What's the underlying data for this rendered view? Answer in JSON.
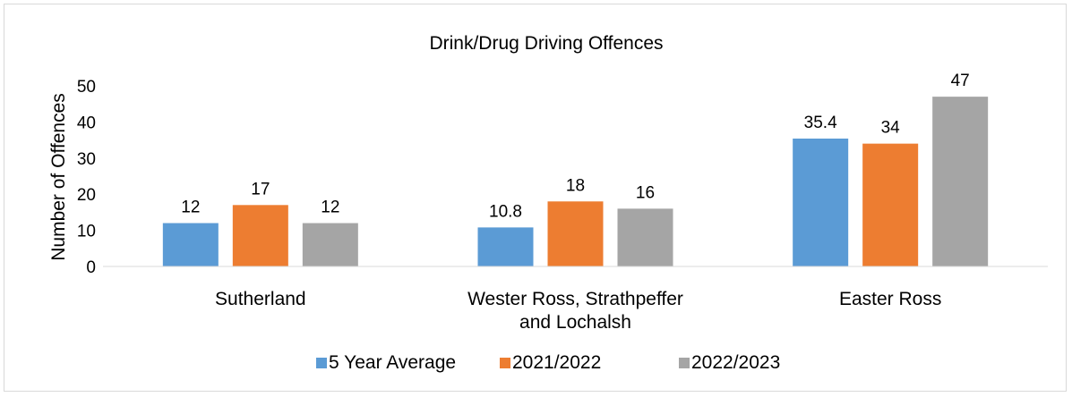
{
  "chart_data": {
    "type": "bar",
    "title": "Drink/Drug Driving Offences",
    "ylabel": "Number of Offences",
    "xlabel": "",
    "ylim": [
      0,
      50
    ],
    "yticks": [
      0,
      10,
      20,
      30,
      40,
      50
    ],
    "grid": false,
    "legend_position": "bottom",
    "categories": [
      [
        "Sutherland"
      ],
      [
        "Wester Ross, Strathpeffer",
        "and Lochalsh"
      ],
      [
        "Easter Ross"
      ]
    ],
    "series": [
      {
        "name": "5 Year Average",
        "color": "#5b9bd5",
        "values": [
          12,
          10.8,
          35.4
        ]
      },
      {
        "name": "2021/2022",
        "color": "#ed7d31",
        "values": [
          17,
          18,
          34
        ]
      },
      {
        "name": "2022/2023",
        "color": "#a5a5a5",
        "values": [
          12,
          16,
          47
        ]
      }
    ]
  }
}
